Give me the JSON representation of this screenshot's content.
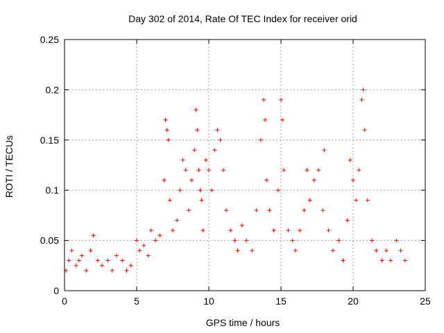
{
  "chart_data": {
    "type": "scatter",
    "title": "Day 302 of 2014, Rate Of TEC Index for receiver orid",
    "xlabel": "GPS time / hours",
    "ylabel": "ROTI / TECUs",
    "xlim": [
      0,
      25
    ],
    "ylim": [
      0,
      0.25
    ],
    "x_ticks": [
      0,
      5,
      10,
      15,
      20,
      25
    ],
    "y_ticks": [
      0,
      0.05,
      0.1,
      0.15,
      0.2,
      0.25
    ],
    "x_tick_labels": [
      "0",
      "5",
      "10",
      "15",
      "20",
      "25"
    ],
    "y_tick_labels": [
      "0",
      "0.05",
      "0.1",
      "0.15",
      "0.2",
      "0.25"
    ],
    "grid": true,
    "marker": "+",
    "color": "#ff0000",
    "series": [
      {
        "values_description_omitted": false,
        "x": [
          0.1,
          0.3,
          0.5,
          0.8,
          1.0,
          1.2,
          1.5,
          1.8,
          2.0,
          2.3,
          2.6,
          3.0,
          3.3,
          3.6,
          4.0,
          4.3,
          4.6,
          5.0,
          5.2,
          5.5,
          5.8,
          6.0,
          6.3,
          6.6,
          6.9,
          7.0,
          7.1,
          7.2,
          7.3,
          7.5,
          7.8,
          8.0,
          8.2,
          8.4,
          8.6,
          8.8,
          9.0,
          9.1,
          9.2,
          9.3,
          9.4,
          9.5,
          9.6,
          9.8,
          10.0,
          10.2,
          10.4,
          10.6,
          10.8,
          11.0,
          11.2,
          11.5,
          11.8,
          12.0,
          12.3,
          12.6,
          13.0,
          13.3,
          13.6,
          13.8,
          13.9,
          14.0,
          14.2,
          14.5,
          14.8,
          15.0,
          15.1,
          15.2,
          15.5,
          15.8,
          16.0,
          16.3,
          16.6,
          16.8,
          17.0,
          17.3,
          17.6,
          17.9,
          18.0,
          18.3,
          18.6,
          19.0,
          19.3,
          19.6,
          19.8,
          20.0,
          20.2,
          20.4,
          20.6,
          20.7,
          20.8,
          21.0,
          21.3,
          21.6,
          22.0,
          22.3,
          22.6,
          23.0,
          23.3,
          23.6
        ],
        "y": [
          0.02,
          0.03,
          0.04,
          0.025,
          0.03,
          0.035,
          0.02,
          0.04,
          0.055,
          0.03,
          0.025,
          0.03,
          0.02,
          0.035,
          0.03,
          0.02,
          0.025,
          0.05,
          0.04,
          0.045,
          0.035,
          0.06,
          0.05,
          0.055,
          0.11,
          0.17,
          0.16,
          0.15,
          0.09,
          0.06,
          0.07,
          0.1,
          0.13,
          0.12,
          0.08,
          0.11,
          0.14,
          0.18,
          0.16,
          0.12,
          0.1,
          0.09,
          0.06,
          0.13,
          0.12,
          0.1,
          0.14,
          0.16,
          0.15,
          0.12,
          0.08,
          0.06,
          0.05,
          0.04,
          0.065,
          0.05,
          0.04,
          0.08,
          0.15,
          0.19,
          0.17,
          0.11,
          0.08,
          0.06,
          0.1,
          0.19,
          0.17,
          0.12,
          0.06,
          0.05,
          0.04,
          0.06,
          0.08,
          0.12,
          0.09,
          0.11,
          0.12,
          0.08,
          0.14,
          0.06,
          0.04,
          0.05,
          0.03,
          0.07,
          0.13,
          0.11,
          0.09,
          0.12,
          0.19,
          0.2,
          0.16,
          0.09,
          0.05,
          0.04,
          0.03,
          0.04,
          0.03,
          0.05,
          0.04,
          0.03
        ]
      }
    ]
  }
}
